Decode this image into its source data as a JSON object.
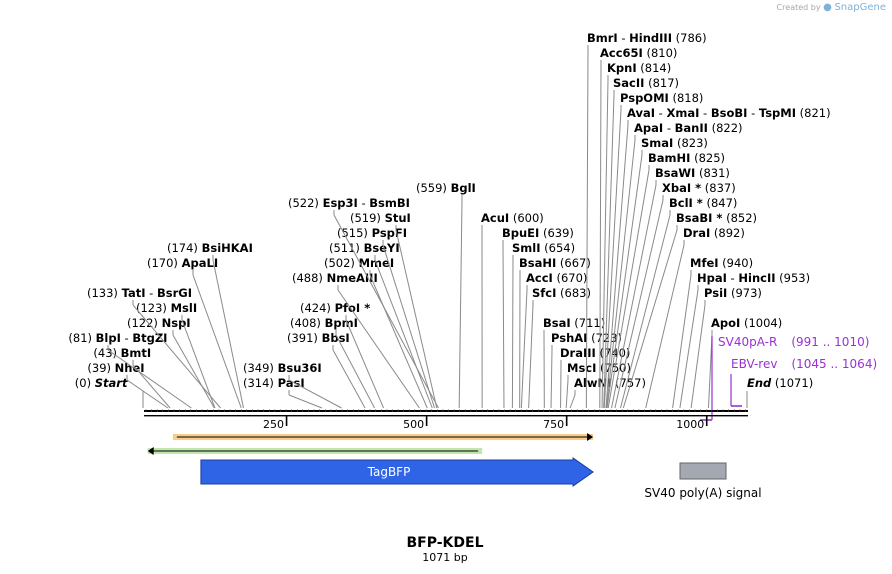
{
  "watermark": {
    "prefix": "Created by",
    "brand": "SnapGene"
  },
  "plasmid": {
    "name": "BFP-KDEL",
    "length_label": "1071 bp",
    "length": 1071
  },
  "scale_ticks": [
    {
      "bp": 250,
      "label": "250"
    },
    {
      "bp": 500,
      "label": "500"
    },
    {
      "bp": 750,
      "label": "750"
    },
    {
      "bp": 1000,
      "label": "1000"
    }
  ],
  "sites": [
    {
      "parts": [
        {
          "name": "Start",
          "italic": true
        }
      ],
      "pos": "(0)",
      "bp": 0
    },
    {
      "parts": [
        {
          "name": "NheI"
        }
      ],
      "pos": "(39)",
      "bp": 39
    },
    {
      "parts": [
        {
          "name": "BmtI"
        }
      ],
      "pos": "(43)",
      "bp": 43
    },
    {
      "parts": [
        {
          "name": "BlpI"
        },
        {
          "name": "BtgZI"
        }
      ],
      "pos": "(81)",
      "bp": 81
    },
    {
      "parts": [
        {
          "name": "NspI"
        }
      ],
      "pos": "(122)",
      "bp": 122
    },
    {
      "parts": [
        {
          "name": "MslI"
        }
      ],
      "pos": "(123)",
      "bp": 123
    },
    {
      "parts": [
        {
          "name": "TatI"
        },
        {
          "name": "BsrGI"
        }
      ],
      "pos": "(133)",
      "bp": 133
    },
    {
      "parts": [
        {
          "name": "ApaLI"
        }
      ],
      "pos": "(170)",
      "bp": 170
    },
    {
      "parts": [
        {
          "name": "BsiHKAI"
        }
      ],
      "pos": "(174)",
      "bp": 174
    },
    {
      "parts": [
        {
          "name": "PasI"
        }
      ],
      "pos": "(314)",
      "bp": 314
    },
    {
      "parts": [
        {
          "name": "Bsu36I"
        }
      ],
      "pos": "(349)",
      "bp": 349
    },
    {
      "parts": [
        {
          "name": "BbsI"
        }
      ],
      "pos": "(391)",
      "bp": 391
    },
    {
      "parts": [
        {
          "name": "BpmI"
        }
      ],
      "pos": "(408)",
      "bp": 408
    },
    {
      "parts": [
        {
          "name": "PfoI *"
        }
      ],
      "pos": "(424)",
      "bp": 424
    },
    {
      "parts": [
        {
          "name": "NmeAIII"
        }
      ],
      "pos": "(488)",
      "bp": 488
    },
    {
      "parts": [
        {
          "name": "MmeI"
        }
      ],
      "pos": "(502)",
      "bp": 502
    },
    {
      "parts": [
        {
          "name": "BseYI"
        }
      ],
      "pos": "(511)",
      "bp": 511
    },
    {
      "parts": [
        {
          "name": "PspFI"
        }
      ],
      "pos": "(515)",
      "bp": 515
    },
    {
      "parts": [
        {
          "name": "StuI"
        }
      ],
      "pos": "(519)",
      "bp": 519
    },
    {
      "parts": [
        {
          "name": "Esp3I"
        },
        {
          "name": "BsmBI"
        }
      ],
      "pos": "(522)",
      "bp": 522
    },
    {
      "parts": [
        {
          "name": "BglI"
        }
      ],
      "pos": "(559)",
      "bp": 559
    },
    {
      "parts": [
        {
          "name": "AcuI"
        }
      ],
      "pos": "(600)",
      "bp": 600
    },
    {
      "parts": [
        {
          "name": "BpuEI"
        }
      ],
      "pos": "(639)",
      "bp": 639
    },
    {
      "parts": [
        {
          "name": "SmlI"
        }
      ],
      "pos": "(654)",
      "bp": 654
    },
    {
      "parts": [
        {
          "name": "BsaHI"
        }
      ],
      "pos": "(667)",
      "bp": 667
    },
    {
      "parts": [
        {
          "name": "AccI"
        }
      ],
      "pos": "(670)",
      "bp": 670
    },
    {
      "parts": [
        {
          "name": "SfcI"
        }
      ],
      "pos": "(683)",
      "bp": 683
    },
    {
      "parts": [
        {
          "name": "BsaI"
        }
      ],
      "pos": "(711)",
      "bp": 711
    },
    {
      "parts": [
        {
          "name": "PshAI"
        }
      ],
      "pos": "(723)",
      "bp": 723
    },
    {
      "parts": [
        {
          "name": "DraIII"
        }
      ],
      "pos": "(740)",
      "bp": 740
    },
    {
      "parts": [
        {
          "name": "MscI"
        }
      ],
      "pos": "(750)",
      "bp": 750
    },
    {
      "parts": [
        {
          "name": "AlwNI"
        }
      ],
      "pos": "(757)",
      "bp": 757
    },
    {
      "parts": [
        {
          "name": "BmrI"
        },
        {
          "name": "HindIII"
        }
      ],
      "pos": "(786)",
      "bp": 786
    },
    {
      "parts": [
        {
          "name": "Acc65I"
        }
      ],
      "pos": "(810)",
      "bp": 810
    },
    {
      "parts": [
        {
          "name": "KpnI"
        }
      ],
      "pos": "(814)",
      "bp": 814
    },
    {
      "parts": [
        {
          "name": "SacII"
        }
      ],
      "pos": "(817)",
      "bp": 817
    },
    {
      "parts": [
        {
          "name": "PspOMI"
        }
      ],
      "pos": "(818)",
      "bp": 818
    },
    {
      "parts": [
        {
          "name": "AvaI"
        },
        {
          "name": "XmaI"
        },
        {
          "name": "BsoBI"
        },
        {
          "name": "TspMI"
        }
      ],
      "pos": "(821)",
      "bp": 821
    },
    {
      "parts": [
        {
          "name": "ApaI"
        },
        {
          "name": "BanII"
        }
      ],
      "pos": "(822)",
      "bp": 822
    },
    {
      "parts": [
        {
          "name": "SmaI"
        }
      ],
      "pos": "(823)",
      "bp": 823
    },
    {
      "parts": [
        {
          "name": "BamHI"
        }
      ],
      "pos": "(825)",
      "bp": 825
    },
    {
      "parts": [
        {
          "name": "BsaWI"
        }
      ],
      "pos": "(831)",
      "bp": 831
    },
    {
      "parts": [
        {
          "name": "XbaI *"
        }
      ],
      "pos": "(837)",
      "bp": 837
    },
    {
      "parts": [
        {
          "name": "BclI *"
        }
      ],
      "pos": "(847)",
      "bp": 847
    },
    {
      "parts": [
        {
          "name": "BsaBI *"
        }
      ],
      "pos": "(852)",
      "bp": 852
    },
    {
      "parts": [
        {
          "name": "DraI"
        }
      ],
      "pos": "(892)",
      "bp": 892
    },
    {
      "parts": [
        {
          "name": "MfeI"
        }
      ],
      "pos": "(940)",
      "bp": 940
    },
    {
      "parts": [
        {
          "name": "HpaI"
        },
        {
          "name": "HincII"
        }
      ],
      "pos": "(953)",
      "bp": 953
    },
    {
      "parts": [
        {
          "name": "PsiI"
        }
      ],
      "pos": "(973)",
      "bp": 973
    },
    {
      "parts": [
        {
          "name": "ApoI"
        }
      ],
      "pos": "(1004)",
      "bp": 1004
    },
    {
      "parts": [
        {
          "name": "End",
          "italic": true
        }
      ],
      "pos": "(1071)",
      "bp": 1071
    }
  ],
  "primers": [
    {
      "name": "SV40pA-R",
      "range": "(991 .. 1010)",
      "start": 991,
      "end": 1010,
      "direction": "reverse"
    },
    {
      "name": "EBV-rev",
      "range": "(1045 .. 1064)",
      "start": 1045,
      "end": 1064,
      "direction": "reverse"
    }
  ],
  "features": [
    {
      "label": "",
      "start": 48,
      "end": 798,
      "direction": "forward",
      "color": "#f2a42a",
      "style": "thin"
    },
    {
      "label": "",
      "start": 3,
      "end": 600,
      "direction": "reverse",
      "color": "#8ed36b",
      "style": "thin"
    },
    {
      "label": "TagBFP",
      "start": 98,
      "end": 798,
      "direction": "forward",
      "color": "#2f64e6",
      "style": "arrow"
    },
    {
      "label": "SV40 poly(A) signal",
      "start": 945,
      "end": 1026,
      "direction": "none",
      "color": "#a4a8b0",
      "style": "box"
    }
  ]
}
